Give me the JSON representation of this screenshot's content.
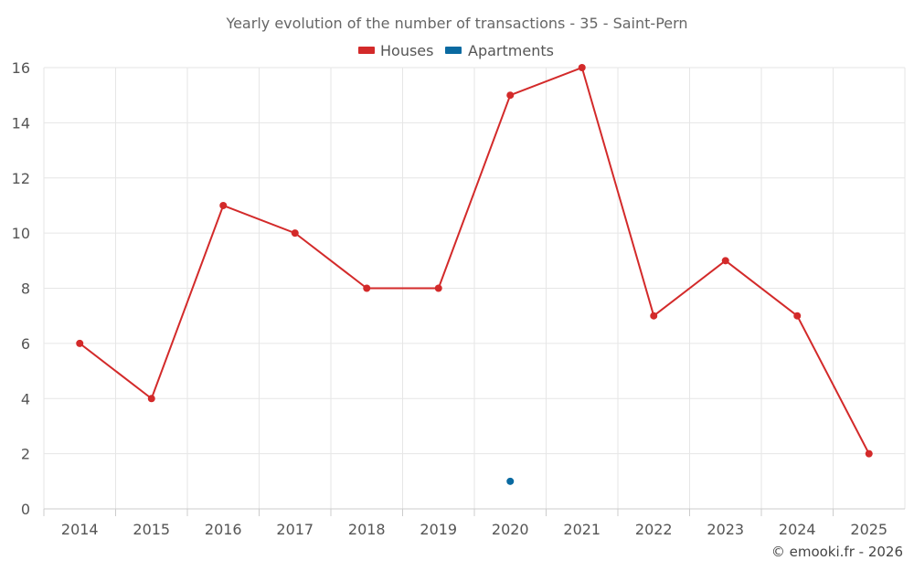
{
  "chart_data": {
    "type": "line",
    "title": "Yearly evolution of the number of transactions - 35 - Saint-Pern",
    "categories": [
      "2014",
      "2015",
      "2016",
      "2017",
      "2018",
      "2019",
      "2020",
      "2021",
      "2022",
      "2023",
      "2024",
      "2025"
    ],
    "series": [
      {
        "name": "Houses",
        "color": "#d32a2a",
        "values": [
          6,
          4,
          11,
          10,
          8,
          8,
          15,
          16,
          7,
          9,
          7,
          2
        ]
      },
      {
        "name": "Apartments",
        "color": "#0a6aa1",
        "values": [
          null,
          null,
          null,
          null,
          null,
          null,
          1,
          null,
          null,
          null,
          null,
          null
        ]
      }
    ],
    "xlabel": "",
    "ylabel": "",
    "ylim": [
      0,
      16
    ],
    "yticks": [
      0,
      2,
      4,
      6,
      8,
      10,
      12,
      14,
      16
    ],
    "grid": true,
    "legend_position": "top-center"
  },
  "credit": "© emooki.fr - 2026"
}
